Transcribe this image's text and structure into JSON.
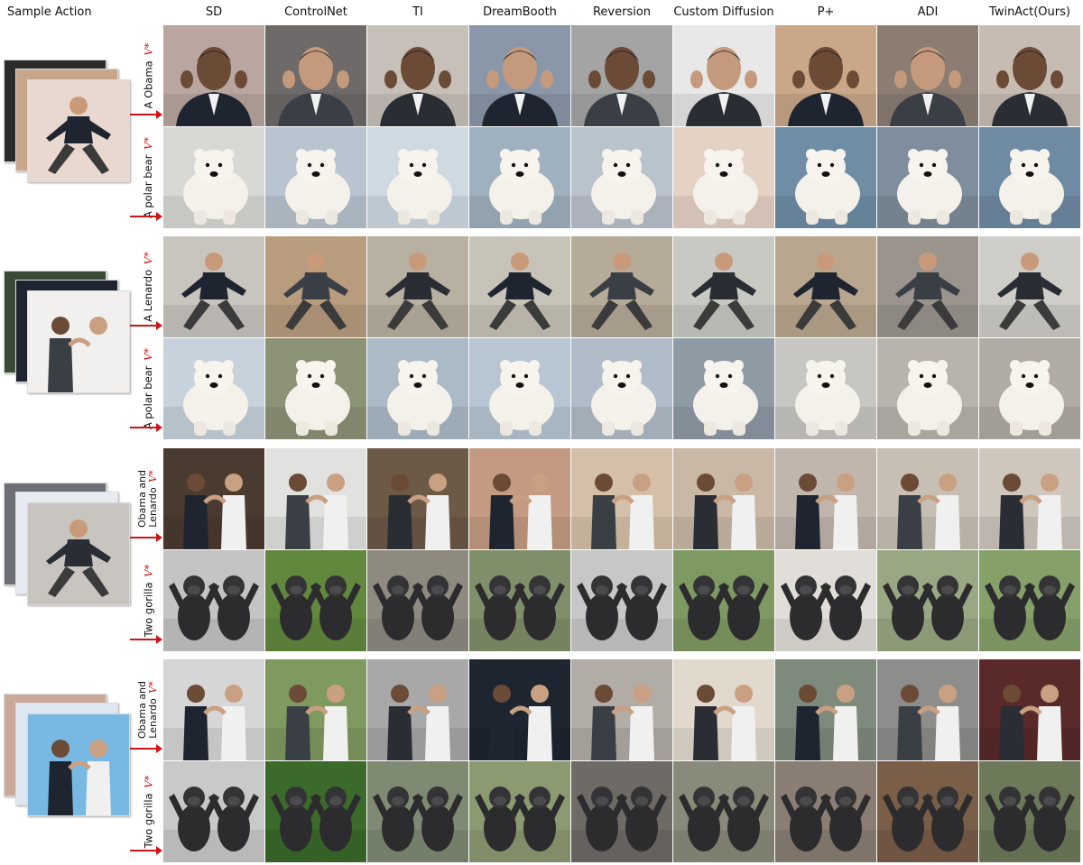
{
  "columns": [
    "Sample Action",
    "SD",
    "ControlNet",
    "TI",
    "DreamBooth",
    "Reversion",
    "Custom Diffusion",
    "P+",
    "ADI",
    "TwinAct(Ours)"
  ],
  "vmark": "V*",
  "groups": [
    {
      "rows": [
        {
          "label": "A Obama",
          "subject": "man-suit",
          "bg": [
            "#b9a6a0",
            "#6e6a6a",
            "#c7c0b8",
            "#8a97a8",
            "#a4a4a4",
            "#e8e8e8",
            "#c9a788",
            "#8b7d72",
            "#c7bcb2"
          ]
        },
        {
          "label": "A polar bear",
          "subject": "bear",
          "bg": [
            "#d8d8d4",
            "#b8c4cf",
            "#cfd9e2",
            "#9fb0be",
            "#b9c3cc",
            "#e4d2c4",
            "#6f8ea6",
            "#7e8e9c",
            "#6f8aa3"
          ]
        }
      ]
    },
    {
      "rows": [
        {
          "label": "A Lenardo",
          "subject": "man-pose",
          "bg": [
            "#c8c4be",
            "#b89c7e",
            "#b8b0a0",
            "#c8c3b8",
            "#b6aa98",
            "#c9c9c4",
            "#b8a68e",
            "#9a948c",
            "#cfcdc8"
          ]
        },
        {
          "label": "A polar bear",
          "subject": "bear",
          "bg": [
            "#c7d2dc",
            "#8c9276",
            "#aabac6",
            "#b7c6d2",
            "#b0bcc8",
            "#8e9aa4",
            "#c7c6c2",
            "#b8b4ac",
            "#b1aba5"
          ]
        }
      ]
    },
    {
      "rows": [
        {
          "label": "Obama and",
          "label2": "Lenardo",
          "subject": "two-men",
          "bg": [
            "#4a3b30",
            "#e1e1df",
            "#6c5a47",
            "#c49b82",
            "#d4c0a8",
            "#c9b8a6",
            "#c0b6ac",
            "#c8bfb4",
            "#cfc6bd"
          ]
        },
        {
          "label": "Two gorilla",
          "subject": "two-gorillas",
          "bg": [
            "#c4c4c4",
            "#62883e",
            "#8e8a80",
            "#7f8f6a",
            "#c7c7c7",
            "#7e9a62",
            "#e1ddd8",
            "#98a883",
            "#86a06a"
          ]
        }
      ]
    },
    {
      "rows": [
        {
          "label": "Obama and",
          "label2": "Lenardo",
          "subject": "two-men",
          "bg": [
            "#d6d6d6",
            "#7f9a5e",
            "#a8a8a8",
            "#1d2630",
            "#b2aca6",
            "#e1d9cc",
            "#7e8a7c",
            "#8d8e8b",
            "#5a2a2a"
          ]
        },
        {
          "label": "Two gorilla",
          "subject": "two-gorillas",
          "bg": [
            "#c9c9c9",
            "#3b6a2a",
            "#7e8a72",
            "#8c9a72",
            "#6e6a66",
            "#8a8a7a",
            "#8a7e74",
            "#7a5e48",
            "#6d7a5a"
          ]
        }
      ]
    }
  ],
  "sample_stacks": [
    {
      "colors": [
        "#2b2b2b",
        "#c7a68c",
        "#e9d8cf"
      ]
    },
    {
      "colors": [
        "#3b4a36",
        "#1e2430",
        "#f2f0ee"
      ]
    },
    {
      "colors": [
        "#6d6e76",
        "#e8ecf2",
        "#c8c4c0"
      ]
    },
    {
      "colors": [
        "#caa89a",
        "#dfe8f2",
        "#77b9e3"
      ]
    }
  ]
}
